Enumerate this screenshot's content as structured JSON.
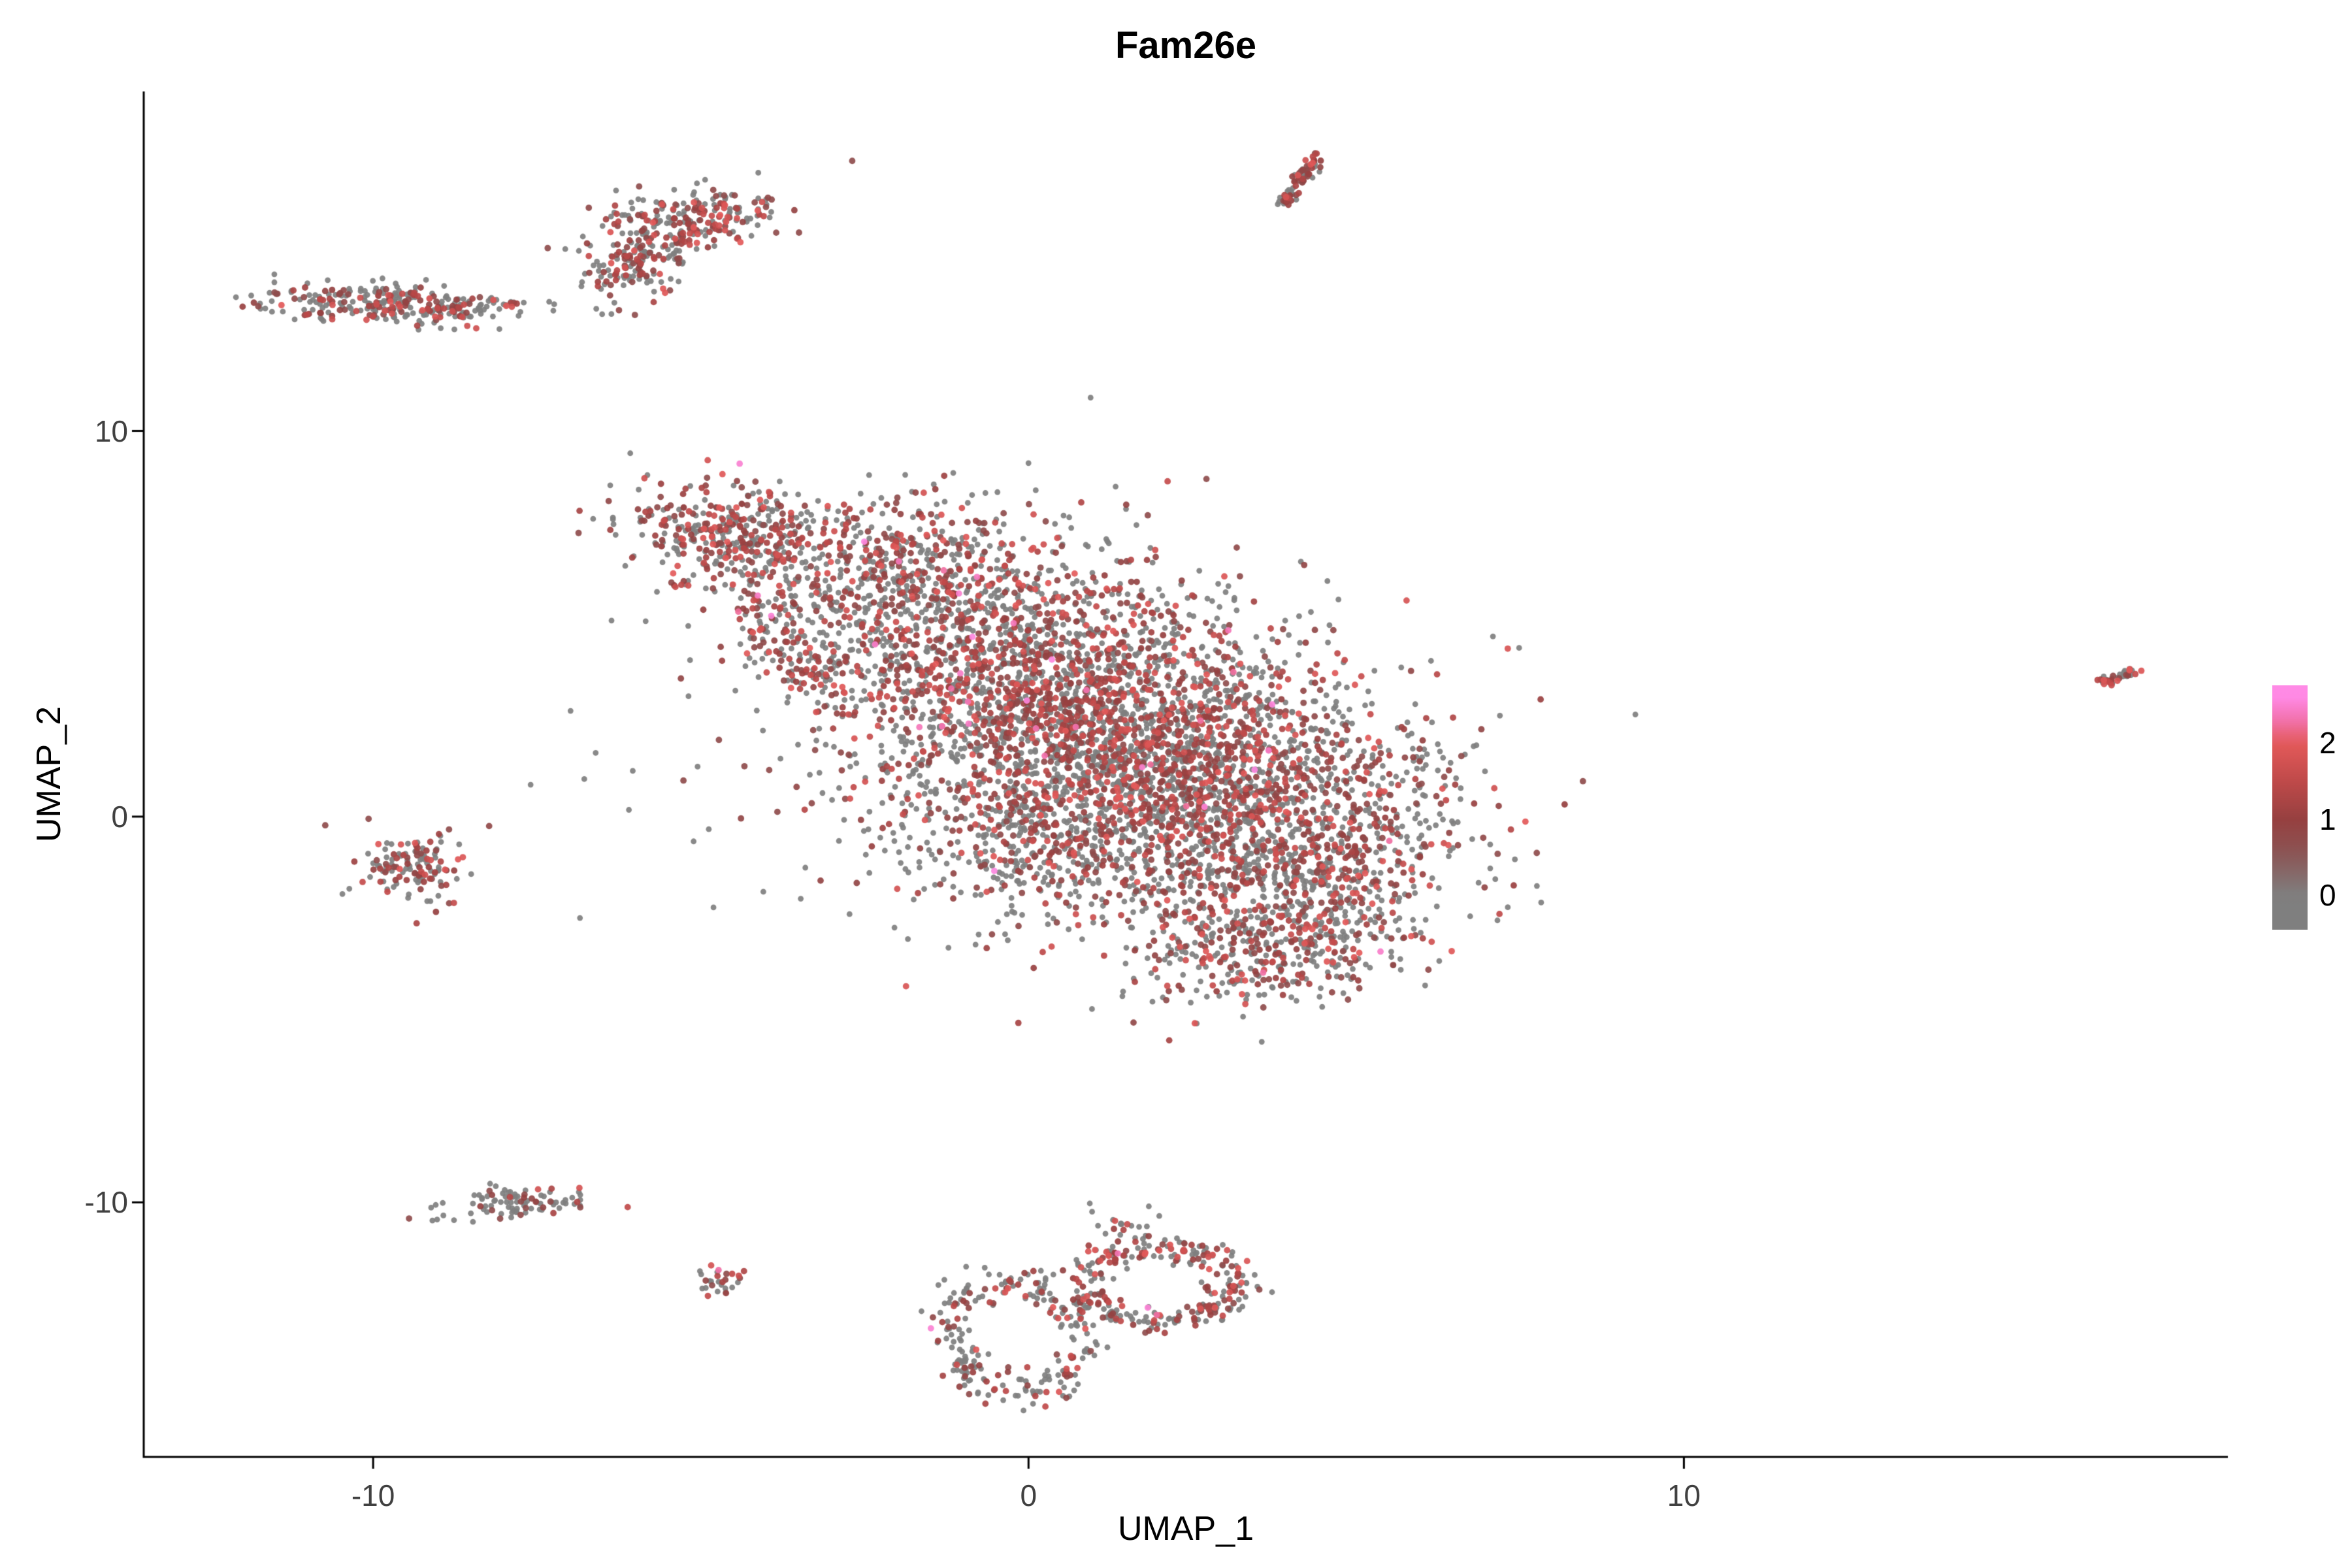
{
  "title": "Fam26e",
  "chart_data": {
    "type": "scatter",
    "title": "Fam26e",
    "xlabel": "UMAP_1",
    "ylabel": "UMAP_2",
    "x_ticks": [
      -10,
      0,
      10
    ],
    "y_ticks": [
      10,
      0,
      -10
    ],
    "x_tick_labels": [
      "-10",
      "0",
      "10"
    ],
    "y_tick_labels": [
      "10",
      "0",
      "-10"
    ],
    "x_range": [
      -13.5,
      18.3
    ],
    "y_range": [
      -16.6,
      18.8
    ],
    "grid": false,
    "background": "#ffffff",
    "axis_color": "#000000",
    "base_point_color": "#7F7F7F",
    "point_radius_px": 4.4,
    "rng_seed": 42,
    "color_scale": [
      {
        "v": 0.0,
        "c": "#7F7F7F"
      },
      {
        "v": 0.6,
        "c": "#8C5151"
      },
      {
        "v": 1.0,
        "c": "#964040"
      },
      {
        "v": 1.5,
        "c": "#C04A4A"
      },
      {
        "v": 2.0,
        "c": "#E45A5A"
      },
      {
        "v": 2.3,
        "c": "#F272AE"
      },
      {
        "v": 2.6,
        "c": "#FF8AE6"
      }
    ],
    "legend": {
      "labels": [
        "2",
        "1",
        "0"
      ],
      "label_values": [
        2,
        1,
        0
      ],
      "bar_value_range": [
        -0.45,
        2.75
      ],
      "position": "right"
    },
    "clusters": [
      {
        "name": "top-streak",
        "type": "streak",
        "n": 70,
        "cx": 4.15,
        "cy": 16.5,
        "dx": 0.28,
        "dy": 0.72,
        "jitter": 0.07,
        "expr": 0.6
      },
      {
        "name": "cluster-upper-left",
        "type": "gauss",
        "n": 230,
        "cx": -5.25,
        "cy": 15.4,
        "sx": 0.75,
        "sy": 0.4,
        "rot": 18,
        "expr": 0.5
      },
      {
        "name": "cluster-upper-left-tail",
        "type": "gauss",
        "n": 130,
        "cx": -6.05,
        "cy": 14.25,
        "sx": 0.38,
        "sy": 0.6,
        "rot": -28,
        "expr": 0.45
      },
      {
        "name": "cluster-far-left",
        "type": "gauss",
        "n": 240,
        "cx": -9.85,
        "cy": 13.3,
        "sx": 0.92,
        "sy": 0.28,
        "rot": -4,
        "expr": 0.4
      },
      {
        "name": "cluster-far-left-tail",
        "type": "gauss",
        "n": 50,
        "cx": -8.55,
        "cy": 13.2,
        "sx": 0.6,
        "sy": 0.18,
        "rot": 0,
        "expr": 0.22
      },
      {
        "name": "isolated-dot",
        "type": "gauss",
        "n": 3,
        "cx": -7.9,
        "cy": 13.25,
        "sx": 0.06,
        "sy": 0.06,
        "rot": 0,
        "expr": 0.6
      },
      {
        "name": "main-arm-upper-left",
        "type": "gauss",
        "n": 380,
        "cx": -4.5,
        "cy": 7.3,
        "sx": 0.85,
        "sy": 0.6,
        "rot": -20,
        "expr": 0.5
      },
      {
        "name": "main-arm-spur",
        "type": "gauss",
        "n": 160,
        "cx": -3.65,
        "cy": 4.6,
        "sx": 0.35,
        "sy": 0.85,
        "rot": 25,
        "expr": 0.45
      },
      {
        "name": "main-upper",
        "type": "gauss",
        "n": 420,
        "cx": -1.9,
        "cy": 6.6,
        "sx": 1.1,
        "sy": 0.9,
        "rot": -15,
        "expr": 0.5
      },
      {
        "name": "main-core-left",
        "type": "gauss",
        "n": 950,
        "cx": -0.6,
        "cy": 4.2,
        "sx": 1.5,
        "sy": 1.5,
        "rot": 0,
        "expr": 0.5
      },
      {
        "name": "main-core",
        "type": "gauss",
        "n": 1500,
        "cx": 1.1,
        "cy": 2.3,
        "sx": 1.7,
        "sy": 1.7,
        "rot": 0,
        "expr": 0.5
      },
      {
        "name": "main-core-right",
        "type": "gauss",
        "n": 1250,
        "cx": 2.9,
        "cy": 0.6,
        "sx": 1.7,
        "sy": 1.5,
        "rot": 0,
        "expr": 0.45
      },
      {
        "name": "main-lower-right",
        "type": "gauss",
        "n": 520,
        "cx": 4.1,
        "cy": -1.4,
        "sx": 1.2,
        "sy": 1.1,
        "rot": 0,
        "expr": 0.4
      },
      {
        "name": "main-bottom-lobe",
        "type": "gauss",
        "n": 380,
        "cx": 3.7,
        "cy": -3.4,
        "sx": 1.05,
        "sy": 0.75,
        "rot": 15,
        "expr": 0.45
      },
      {
        "name": "main-lower-left",
        "type": "gauss",
        "n": 330,
        "cx": 0.2,
        "cy": -0.9,
        "sx": 1.0,
        "sy": 1.1,
        "rot": 0,
        "expr": 0.35
      },
      {
        "name": "main-halo",
        "type": "gauss",
        "n": 320,
        "cx": 0.8,
        "cy": 2.2,
        "sx": 3.0,
        "sy": 2.7,
        "rot": -25,
        "expr": 0.3
      },
      {
        "name": "cluster-left-middle",
        "type": "gauss",
        "n": 130,
        "cx": -9.4,
        "cy": -1.3,
        "sx": 0.42,
        "sy": 0.5,
        "rot": 20,
        "expr": 0.45
      },
      {
        "name": "cluster-left-lower",
        "type": "gauss",
        "n": 95,
        "cx": -7.8,
        "cy": -10.0,
        "sx": 0.6,
        "sy": 0.24,
        "rot": 8,
        "expr": 0.2
      },
      {
        "name": "cluster-tiny-left",
        "type": "gauss",
        "n": 28,
        "cx": -4.75,
        "cy": -12.1,
        "sx": 0.16,
        "sy": 0.2,
        "rot": 0,
        "expr": 0.5
      },
      {
        "name": "ring-bottom-left",
        "type": "ring",
        "n": 240,
        "cx": -0.2,
        "cy": -13.5,
        "rx": 1.0,
        "ry": 1.45,
        "thick": 0.16,
        "rot": 8,
        "expr": 0.35
      },
      {
        "name": "ring-bottom-right",
        "type": "ring",
        "n": 280,
        "cx": 2.0,
        "cy": -12.1,
        "rx": 1.15,
        "ry": 0.95,
        "thick": 0.18,
        "rot": 0,
        "expr": 0.5
      },
      {
        "name": "ring-top-scatter",
        "type": "gauss",
        "n": 20,
        "cx": 1.5,
        "cy": -10.6,
        "sx": 0.3,
        "sy": 0.25,
        "rot": 0,
        "expr": 0.2
      },
      {
        "name": "cluster-far-right",
        "type": "streak",
        "n": 35,
        "cx": 16.6,
        "cy": 3.6,
        "dx": 0.22,
        "dy": 0.18,
        "jitter": 0.07,
        "expr": 0.55
      }
    ]
  }
}
